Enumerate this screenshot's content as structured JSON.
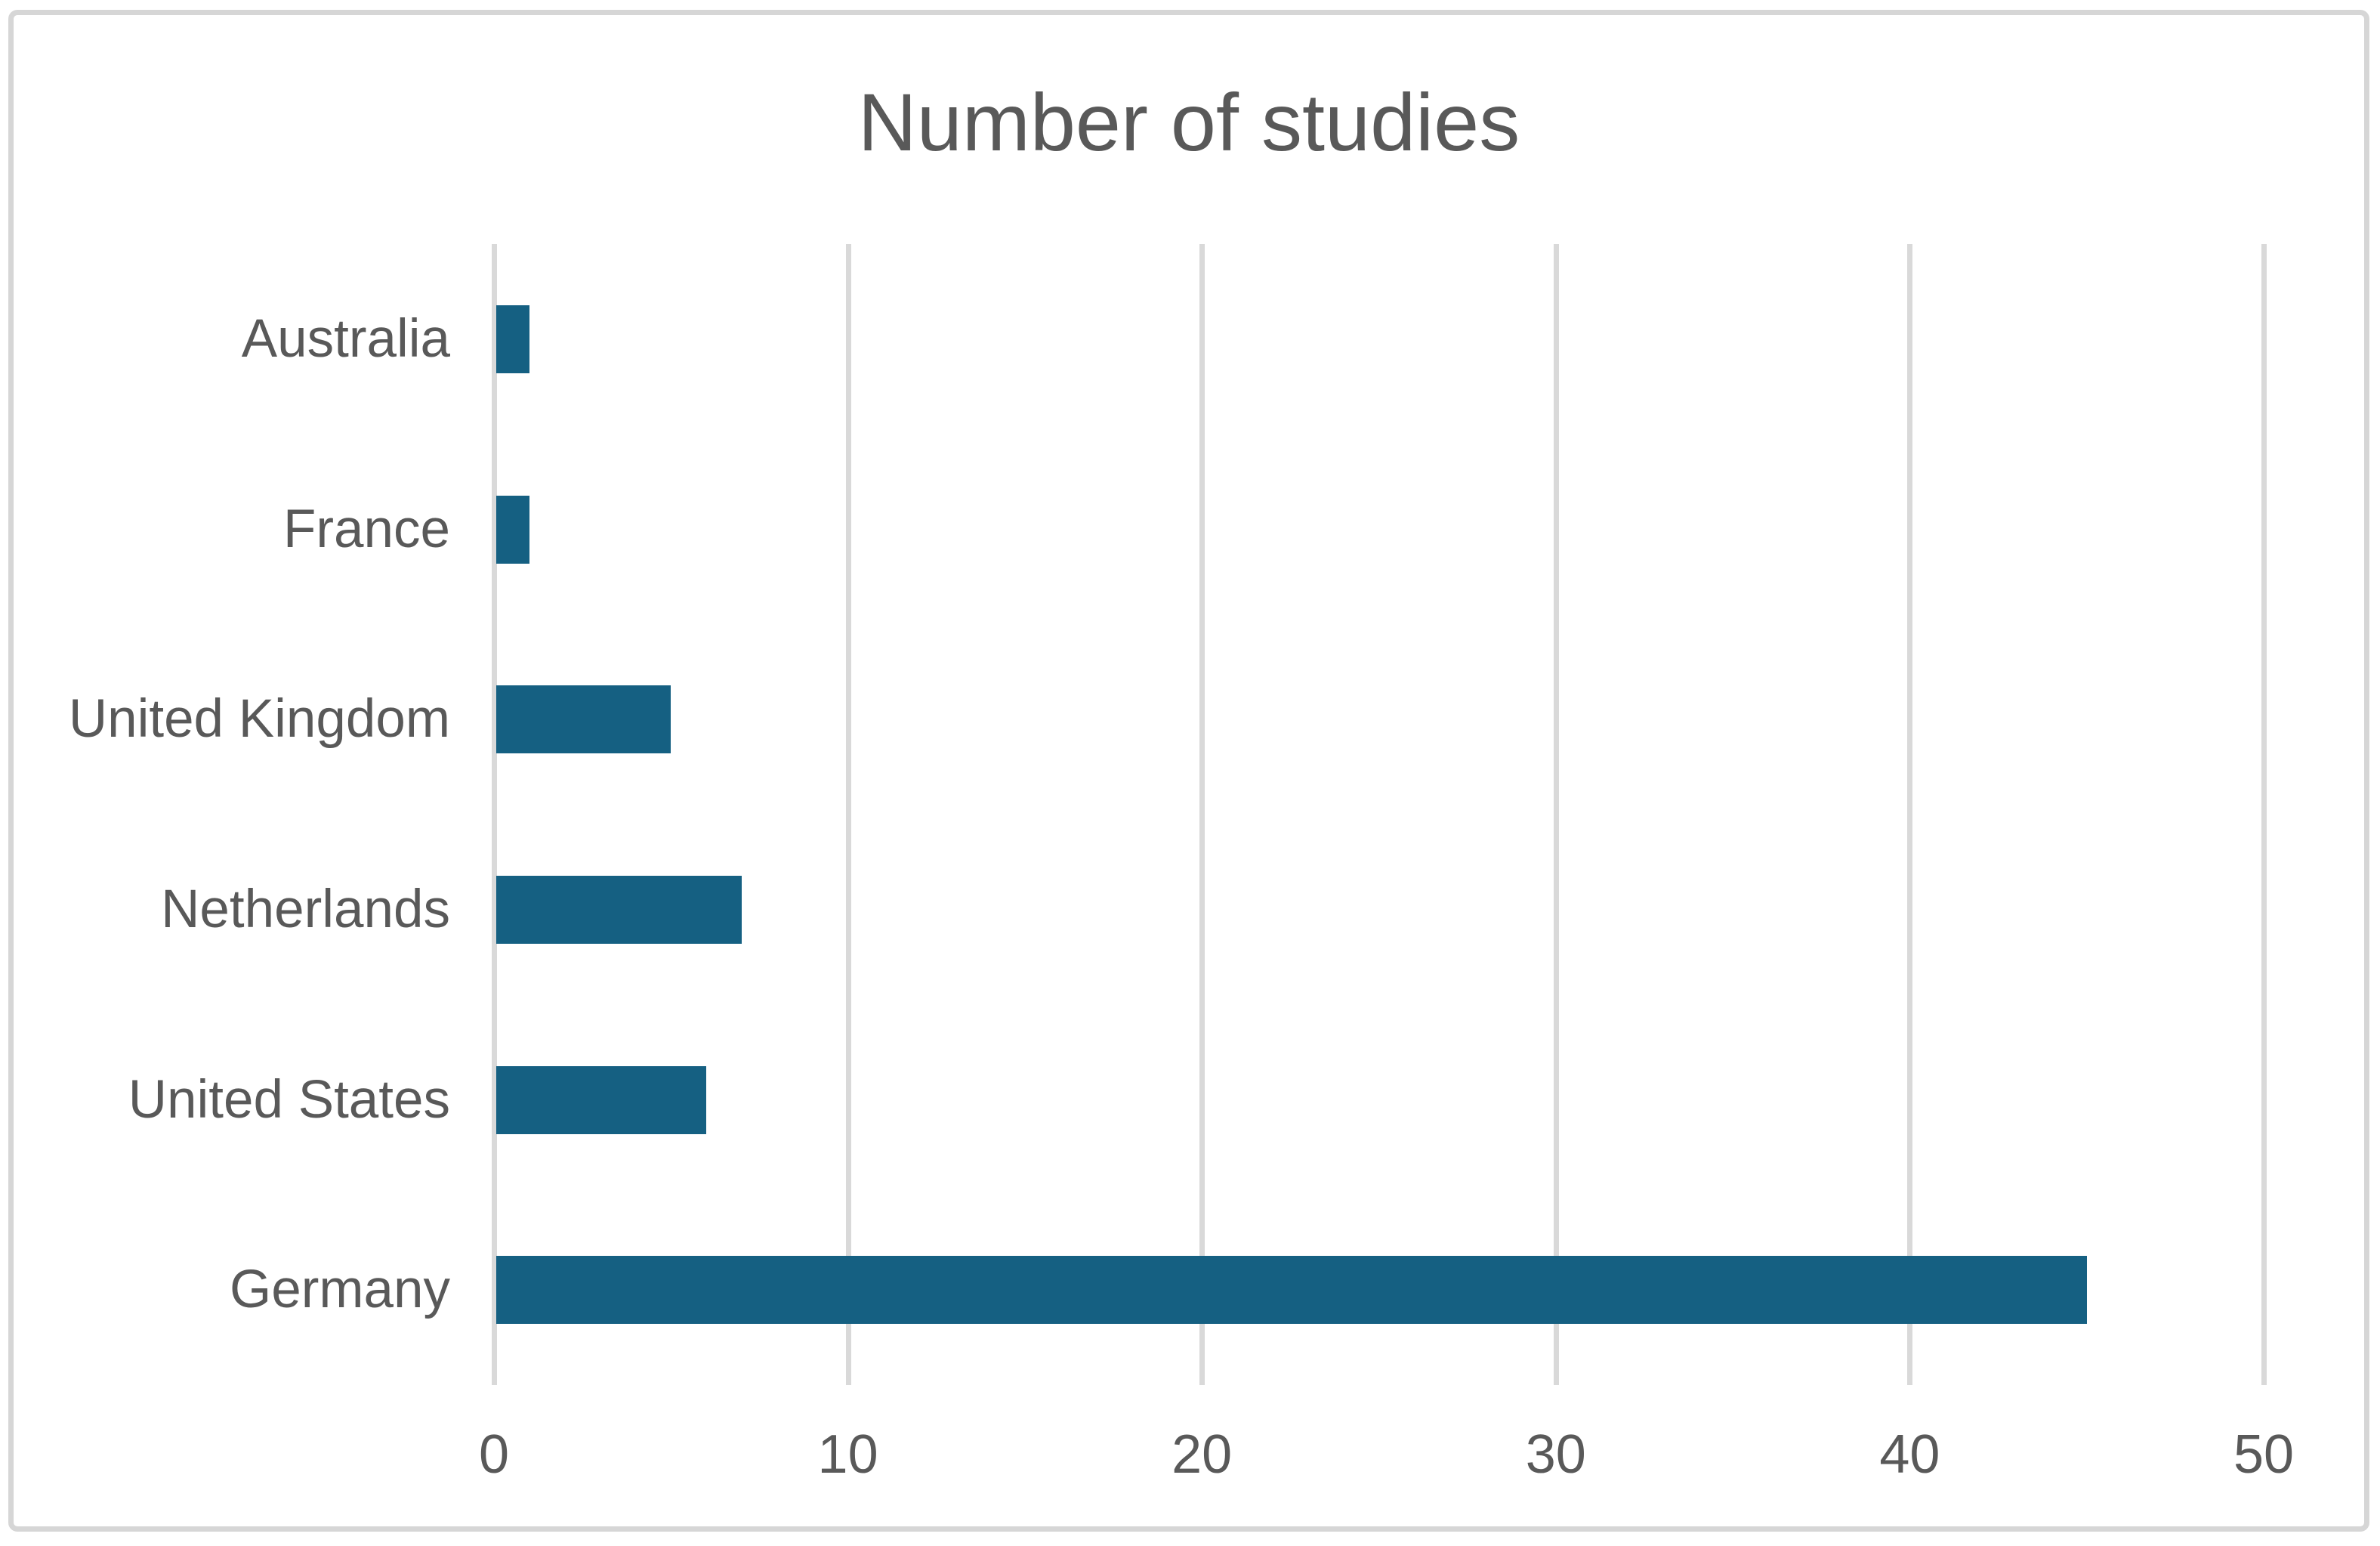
{
  "chart_data": {
    "type": "bar",
    "orientation": "horizontal",
    "title": "Number of studies",
    "categories": [
      "Australia",
      "France",
      "United Kingdom",
      "Netherlands",
      "United States",
      "Germany"
    ],
    "values": [
      1,
      1,
      5,
      7,
      6,
      45
    ],
    "x_ticks": [
      0,
      10,
      20,
      30,
      40,
      50
    ],
    "xlim": [
      0,
      50
    ],
    "xlabel": "",
    "ylabel": "",
    "grid": "vertical",
    "legend": "none",
    "colors": {
      "bar": "#156082",
      "gridline": "#D9D9D9",
      "text": "#595959",
      "frame_border": "#D6D6D6",
      "background": "#ffffff"
    }
  }
}
